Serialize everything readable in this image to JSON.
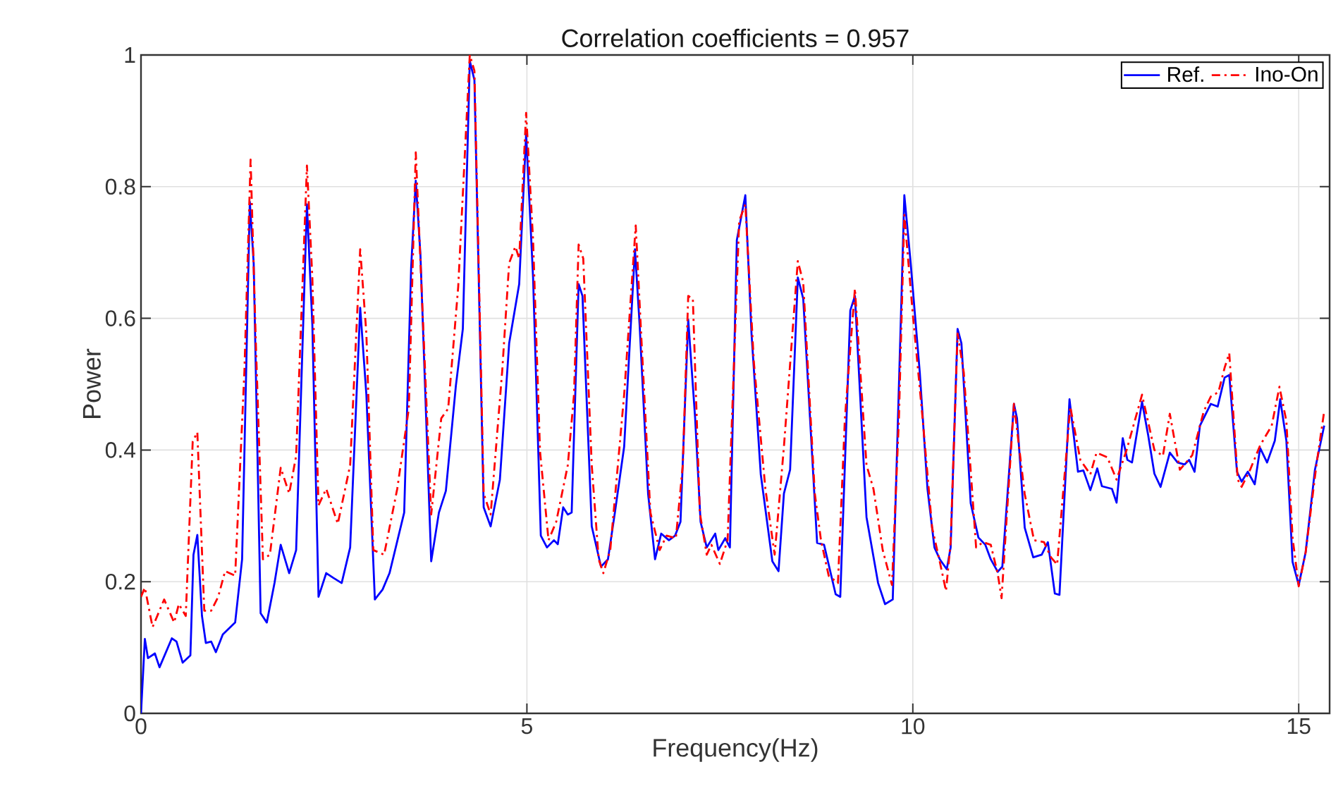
{
  "chart_data": {
    "type": "line",
    "title": "Correlation coefficients = 0.957",
    "xlabel": "Frequency(Hz)",
    "ylabel": "Power",
    "xlim": [
      0,
      15.4
    ],
    "ylim": [
      0,
      1
    ],
    "xticks": [
      0,
      5,
      10,
      15
    ],
    "yticks": [
      0,
      0.2,
      0.4,
      0.6,
      0.8,
      1
    ],
    "grid": true,
    "legend": "top right",
    "series": [
      {
        "name": "Ref.",
        "color": "#0000ff",
        "line_style": "solid",
        "x": [
          0,
          0.05,
          0.09,
          0.18,
          0.24,
          0.4,
          0.46,
          0.54,
          0.64,
          0.68,
          0.73,
          0.79,
          0.84,
          0.91,
          0.97,
          1.06,
          1.22,
          1.31,
          1.41,
          1.46,
          1.55,
          1.63,
          1.73,
          1.81,
          1.92,
          2.01,
          2.15,
          2.22,
          2.3,
          2.4,
          2.49,
          2.6,
          2.71,
          2.84,
          2.92,
          3.03,
          3.13,
          3.22,
          3.41,
          3.5,
          3.56,
          3.62,
          3.76,
          3.86,
          3.95,
          4.08,
          4.17,
          4.26,
          4.32,
          4.44,
          4.53,
          4.65,
          4.77,
          4.9,
          4.99,
          5.08,
          5.18,
          5.26,
          5.35,
          5.4,
          5.47,
          5.53,
          5.58,
          5.67,
          5.72,
          5.84,
          5.96,
          6.05,
          6.14,
          6.26,
          6.4,
          6.46,
          6.57,
          6.66,
          6.74,
          6.84,
          6.92,
          6.99,
          7.09,
          7.18,
          7.25,
          7.33,
          7.44,
          7.48,
          7.57,
          7.63,
          7.72,
          7.83,
          7.91,
          8.03,
          8.18,
          8.26,
          8.33,
          8.41,
          8.51,
          8.58,
          8.76,
          8.85,
          9.0,
          9.06,
          9.19,
          9.25,
          9.4,
          9.55,
          9.64,
          9.74,
          9.85,
          9.89,
          9.97,
          10.09,
          10.19,
          10.28,
          10.35,
          10.44,
          10.49,
          10.58,
          10.63,
          10.75,
          10.85,
          10.94,
          11.01,
          11.1,
          11.16,
          11.31,
          11.35,
          11.45,
          11.56,
          11.67,
          11.75,
          11.84,
          11.9,
          12.03,
          12.14,
          12.21,
          12.3,
          12.39,
          12.45,
          12.58,
          12.64,
          12.72,
          12.78,
          12.84,
          12.97,
          13.05,
          13.13,
          13.21,
          13.33,
          13.43,
          13.52,
          13.58,
          13.65,
          13.72,
          13.86,
          13.95,
          14.04,
          14.1,
          14.2,
          14.26,
          14.34,
          14.43,
          14.5,
          14.59,
          14.69,
          14.76,
          14.84,
          14.92,
          15.0,
          15.09,
          15.21,
          15.33
        ],
        "values": [
          0,
          0.113,
          0.084,
          0.091,
          0.07,
          0.114,
          0.109,
          0.077,
          0.088,
          0.241,
          0.271,
          0.148,
          0.107,
          0.109,
          0.093,
          0.12,
          0.138,
          0.234,
          0.777,
          0.684,
          0.152,
          0.138,
          0.198,
          0.256,
          0.213,
          0.248,
          0.773,
          0.591,
          0.177,
          0.213,
          0.206,
          0.198,
          0.252,
          0.616,
          0.484,
          0.173,
          0.188,
          0.213,
          0.305,
          0.677,
          0.809,
          0.698,
          0.231,
          0.305,
          0.338,
          0.498,
          0.584,
          0.991,
          0.962,
          0.313,
          0.284,
          0.355,
          0.562,
          0.652,
          0.88,
          0.662,
          0.27,
          0.252,
          0.263,
          0.257,
          0.313,
          0.302,
          0.305,
          0.652,
          0.634,
          0.284,
          0.223,
          0.234,
          0.305,
          0.405,
          0.705,
          0.591,
          0.334,
          0.234,
          0.273,
          0.263,
          0.27,
          0.291,
          0.598,
          0.448,
          0.291,
          0.252,
          0.273,
          0.248,
          0.266,
          0.252,
          0.719,
          0.787,
          0.577,
          0.363,
          0.231,
          0.216,
          0.334,
          0.37,
          0.662,
          0.63,
          0.259,
          0.256,
          0.181,
          0.177,
          0.612,
          0.634,
          0.298,
          0.198,
          0.166,
          0.173,
          0.62,
          0.787,
          0.687,
          0.518,
          0.341,
          0.252,
          0.234,
          0.219,
          0.252,
          0.584,
          0.562,
          0.319,
          0.267,
          0.256,
          0.234,
          0.215,
          0.223,
          0.47,
          0.448,
          0.282,
          0.237,
          0.241,
          0.26,
          0.182,
          0.18,
          0.477,
          0.367,
          0.369,
          0.339,
          0.372,
          0.345,
          0.341,
          0.32,
          0.418,
          0.385,
          0.381,
          0.473,
          0.422,
          0.364,
          0.344,
          0.396,
          0.381,
          0.378,
          0.385,
          0.367,
          0.437,
          0.47,
          0.466,
          0.51,
          0.514,
          0.367,
          0.352,
          0.367,
          0.348,
          0.403,
          0.381,
          0.414,
          0.477,
          0.414,
          0.23,
          0.195,
          0.245,
          0.37,
          0.437
        ]
      },
      {
        "name": "Ino-On",
        "color": "#ff0000",
        "line_style": "dashed",
        "x": [
          0,
          0.05,
          0.15,
          0.3,
          0.43,
          0.49,
          0.58,
          0.67,
          0.73,
          0.82,
          0.91,
          1.0,
          1.09,
          1.22,
          1.34,
          1.42,
          1.49,
          1.58,
          1.67,
          1.81,
          1.92,
          2.01,
          2.15,
          2.22,
          2.3,
          2.4,
          2.55,
          2.71,
          2.84,
          2.92,
          3.01,
          3.15,
          3.32,
          3.47,
          3.56,
          3.64,
          3.76,
          3.89,
          3.98,
          4.11,
          4.26,
          4.32,
          4.44,
          4.53,
          4.68,
          4.77,
          4.85,
          4.9,
          4.99,
          5.08,
          5.17,
          5.28,
          5.38,
          5.53,
          5.61,
          5.67,
          5.73,
          5.84,
          5.93,
          5.99,
          6.08,
          6.26,
          6.41,
          6.48,
          6.6,
          6.72,
          6.81,
          6.93,
          7.02,
          7.09,
          7.15,
          7.24,
          7.33,
          7.39,
          7.5,
          7.6,
          7.75,
          7.83,
          7.94,
          8.09,
          8.21,
          8.33,
          8.51,
          8.58,
          8.73,
          8.81,
          8.91,
          9.03,
          9.12,
          9.25,
          9.4,
          9.49,
          9.61,
          9.73,
          9.82,
          9.89,
          10.0,
          10.13,
          10.25,
          10.35,
          10.43,
          10.49,
          10.58,
          10.66,
          10.82,
          10.91,
          11.01,
          11.1,
          11.15,
          11.31,
          11.45,
          11.57,
          11.7,
          11.79,
          11.87,
          12.04,
          12.17,
          12.3,
          12.38,
          12.52,
          12.64,
          12.77,
          12.97,
          13.13,
          13.24,
          13.33,
          13.46,
          13.62,
          13.77,
          13.86,
          13.96,
          14.04,
          14.1,
          14.21,
          14.26,
          14.37,
          14.5,
          14.65,
          14.75,
          14.84,
          14.92,
          15.0,
          15.09,
          15.23,
          15.33
        ],
        "values": [
          0.177,
          0.191,
          0.131,
          0.173,
          0.138,
          0.166,
          0.148,
          0.413,
          0.427,
          0.156,
          0.156,
          0.177,
          0.216,
          0.209,
          0.52,
          0.841,
          0.555,
          0.234,
          0.241,
          0.373,
          0.334,
          0.391,
          0.832,
          0.662,
          0.316,
          0.341,
          0.288,
          0.377,
          0.705,
          0.577,
          0.248,
          0.241,
          0.341,
          0.463,
          0.852,
          0.633,
          0.302,
          0.448,
          0.463,
          0.648,
          1.0,
          0.976,
          0.334,
          0.302,
          0.52,
          0.684,
          0.709,
          0.691,
          0.912,
          0.719,
          0.398,
          0.263,
          0.291,
          0.377,
          0.484,
          0.712,
          0.691,
          0.377,
          0.234,
          0.213,
          0.248,
          0.484,
          0.741,
          0.577,
          0.305,
          0.248,
          0.27,
          0.266,
          0.377,
          0.634,
          0.63,
          0.305,
          0.241,
          0.256,
          0.227,
          0.263,
          0.748,
          0.773,
          0.534,
          0.341,
          0.241,
          0.405,
          0.687,
          0.655,
          0.334,
          0.263,
          0.209,
          0.198,
          0.448,
          0.645,
          0.377,
          0.341,
          0.248,
          0.195,
          0.448,
          0.757,
          0.606,
          0.444,
          0.282,
          0.23,
          0.186,
          0.26,
          0.577,
          0.518,
          0.252,
          0.26,
          0.256,
          0.212,
          0.175,
          0.47,
          0.333,
          0.263,
          0.26,
          0.237,
          0.226,
          0.466,
          0.385,
          0.363,
          0.396,
          0.389,
          0.355,
          0.4,
          0.484,
          0.4,
          0.391,
          0.455,
          0.37,
          0.392,
          0.459,
          0.481,
          0.488,
          0.525,
          0.547,
          0.355,
          0.344,
          0.37,
          0.407,
          0.437,
          0.496,
          0.444,
          0.267,
          0.193,
          0.245,
          0.378,
          0.459
        ]
      }
    ]
  }
}
